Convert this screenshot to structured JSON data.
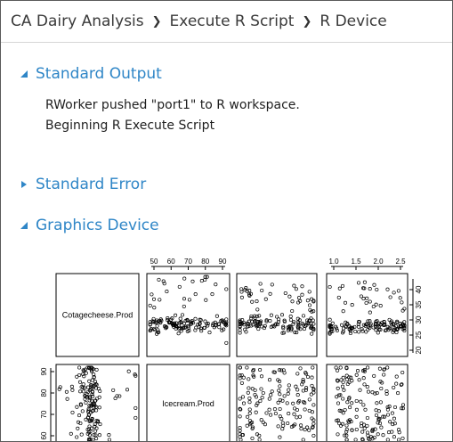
{
  "breadcrumb": {
    "items": [
      "CA Dairy Analysis",
      "Execute R Script",
      "R Device"
    ],
    "separator": "❯"
  },
  "sections": {
    "standard_output": {
      "title": "Standard Output",
      "expanded": true,
      "lines": [
        "RWorker pushed \"port1\" to R workspace.",
        "Beginning R Execute Script"
      ]
    },
    "standard_error": {
      "title": "Standard Error",
      "expanded": false
    },
    "graphics_device": {
      "title": "Graphics Device",
      "expanded": true
    }
  },
  "colors": {
    "accent": "#2f86c7",
    "text": "#222222",
    "divider": "#d6d6d6"
  },
  "chart_data": {
    "type": "scatter",
    "variables": [
      "Cotagecheese.Prod",
      "Icecream.Prod"
    ],
    "top_axis_panel2_ticks": [
      "50",
      "60",
      "70",
      "80",
      "90"
    ],
    "top_axis_panel4_ticks": [
      "1.0",
      "1.5",
      "2.0",
      "2.5"
    ],
    "right_axis_row1_ticks": [
      "40",
      "35",
      "30",
      "25",
      "20"
    ],
    "left_axis_row2_ticks": [
      "90",
      "80",
      "70",
      "60"
    ]
  }
}
